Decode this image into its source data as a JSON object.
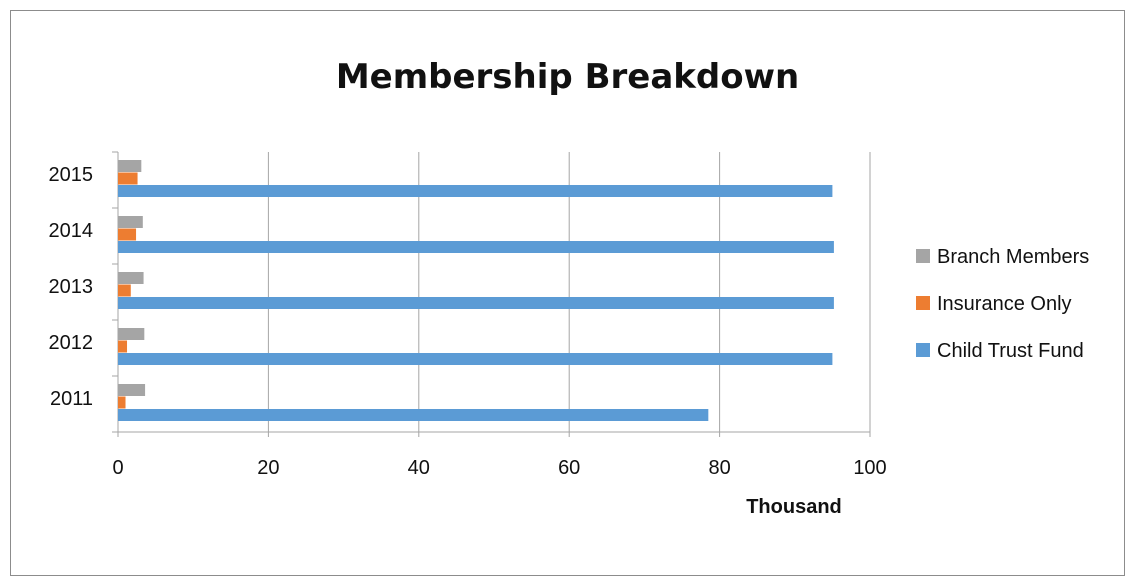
{
  "chart_data": {
    "type": "bar",
    "orientation": "horizontal",
    "title": "Membership Breakdown",
    "xlabel": "Thousand",
    "ylabel": "",
    "categories": [
      "2011",
      "2012",
      "2013",
      "2014",
      "2015"
    ],
    "xlim": [
      0,
      100
    ],
    "x_ticks": [
      "0",
      "20",
      "40",
      "60",
      "80",
      "100"
    ],
    "grid": "vertical major gridlines",
    "legend_position": "right",
    "series": [
      {
        "name": "Child Trust Fund",
        "color": "#5b9bd5",
        "values": [
          78.5,
          95.0,
          95.2,
          95.2,
          95.0
        ]
      },
      {
        "name": "Insurance Only",
        "color": "#ed7d31",
        "values": [
          1.0,
          1.2,
          1.7,
          2.4,
          2.6
        ]
      },
      {
        "name": "Branch Members",
        "color": "#a5a5a5",
        "values": [
          3.6,
          3.5,
          3.4,
          3.3,
          3.1
        ]
      }
    ]
  }
}
